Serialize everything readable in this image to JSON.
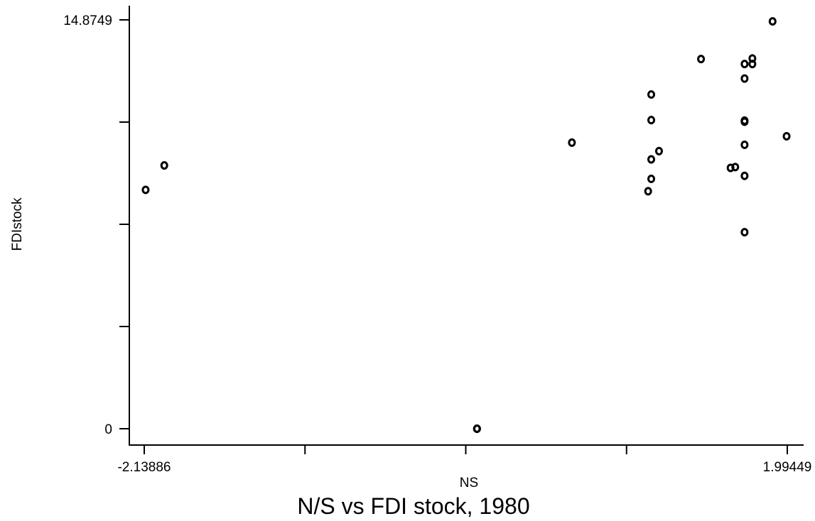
{
  "chart_data": {
    "type": "scatter",
    "title": "N/S vs FDI stock, 1980",
    "xlabel": "NS",
    "ylabel": "FDIstock",
    "xlim": [
      -2.13886,
      1.99449
    ],
    "ylim": [
      0,
      14.8749
    ],
    "x_tick_values": [
      -2.13886,
      -1.105523,
      -0.072185,
      0.961153,
      1.99449
    ],
    "x_tick_labels": [
      "-2.13886",
      "",
      "",
      "",
      "1.99449"
    ],
    "y_tick_values": [
      0,
      3.7187,
      7.4375,
      11.1562,
      14.8749
    ],
    "y_tick_labels": [
      "0",
      "",
      "",
      "",
      "14.8749"
    ],
    "grid": false,
    "legend": "none",
    "points": [
      {
        "x": -2.13,
        "y": 8.69
      },
      {
        "x": -2.01,
        "y": 9.58
      },
      {
        "x": 0.0,
        "y": 0.0
      },
      {
        "x": 0.0,
        "y": 0.0
      },
      {
        "x": 0.0,
        "y": 0.0
      },
      {
        "x": 0.61,
        "y": 10.41
      },
      {
        "x": 1.1,
        "y": 8.64
      },
      {
        "x": 1.12,
        "y": 9.09
      },
      {
        "x": 1.12,
        "y": 9.8
      },
      {
        "x": 1.12,
        "y": 11.23
      },
      {
        "x": 1.12,
        "y": 12.16
      },
      {
        "x": 1.17,
        "y": 10.1
      },
      {
        "x": 1.44,
        "y": 13.45
      },
      {
        "x": 1.63,
        "y": 9.49
      },
      {
        "x": 1.66,
        "y": 9.52
      },
      {
        "x": 1.72,
        "y": 7.15
      },
      {
        "x": 1.72,
        "y": 9.2
      },
      {
        "x": 1.72,
        "y": 10.33
      },
      {
        "x": 1.72,
        "y": 11.17
      },
      {
        "x": 1.72,
        "y": 11.21
      },
      {
        "x": 1.72,
        "y": 12.74
      },
      {
        "x": 1.72,
        "y": 13.27
      },
      {
        "x": 1.77,
        "y": 13.27
      },
      {
        "x": 1.77,
        "y": 13.47
      },
      {
        "x": 1.9,
        "y": 14.82
      },
      {
        "x": 1.99,
        "y": 10.64
      }
    ]
  }
}
